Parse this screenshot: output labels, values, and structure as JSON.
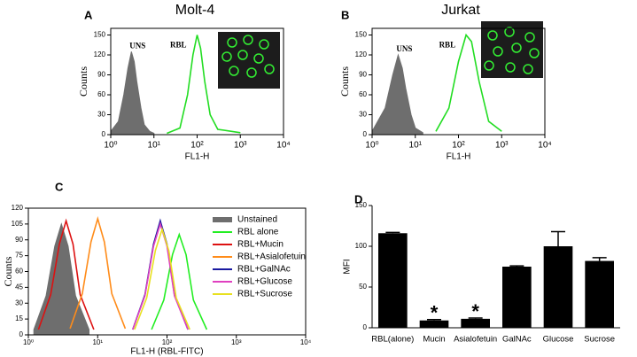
{
  "chart_data": [
    {
      "type": "line",
      "panel": "A",
      "title": "Molt-4",
      "x_label": "FL1-H",
      "y_label": "Counts",
      "xscale": "log",
      "xlim": [
        1,
        10000
      ],
      "xticks": [
        {
          "value": 1,
          "label": "10⁰"
        },
        {
          "value": 10,
          "label": "10¹"
        },
        {
          "value": 100,
          "label": "10²"
        },
        {
          "value": 1000,
          "label": "10³"
        },
        {
          "value": 10000,
          "label": "10⁴"
        }
      ],
      "ylim": [
        0,
        160
      ],
      "yticks": [
        0,
        30,
        60,
        90,
        120,
        150
      ],
      "series": [
        {
          "name": "UNS",
          "color": "#6e6e6e",
          "filled": true,
          "x": [
            1,
            1.5,
            2,
            2.5,
            3,
            3.5,
            4,
            5,
            6,
            8,
            10
          ],
          "values": [
            5,
            20,
            60,
            100,
            125,
            110,
            80,
            40,
            15,
            5,
            2
          ]
        },
        {
          "name": "RBL",
          "color": "#22dd22",
          "filled": false,
          "x": [
            20,
            40,
            60,
            80,
            100,
            120,
            150,
            200,
            300,
            1000
          ],
          "values": [
            2,
            10,
            60,
            120,
            150,
            130,
            80,
            30,
            8,
            3
          ]
        }
      ]
    },
    {
      "type": "line",
      "panel": "B",
      "title": "Jurkat",
      "x_label": "FL1-H",
      "y_label": "Counts",
      "xscale": "log",
      "xlim": [
        1,
        10000
      ],
      "xticks": [
        {
          "value": 1,
          "label": "10⁰"
        },
        {
          "value": 10,
          "label": "10¹"
        },
        {
          "value": 100,
          "label": "10²"
        },
        {
          "value": 1000,
          "label": "10³"
        },
        {
          "value": 10000,
          "label": "10⁴"
        }
      ],
      "ylim": [
        0,
        160
      ],
      "yticks": [
        0,
        30,
        60,
        90,
        120,
        150
      ],
      "series": [
        {
          "name": "UNS",
          "color": "#6e6e6e",
          "filled": true,
          "x": [
            1,
            2,
            3,
            4,
            5,
            6,
            8,
            10,
            15
          ],
          "values": [
            5,
            40,
            90,
            120,
            100,
            70,
            30,
            10,
            3
          ]
        },
        {
          "name": "RBL",
          "color": "#22dd22",
          "filled": false,
          "x": [
            30,
            60,
            100,
            150,
            200,
            300,
            500,
            1000
          ],
          "values": [
            5,
            40,
            110,
            150,
            140,
            80,
            20,
            5
          ]
        }
      ]
    },
    {
      "type": "line",
      "panel": "C",
      "x_label": "FL1-H (RBL-FITC)",
      "y_label": "Counts",
      "xscale": "log",
      "xlim": [
        1,
        10000
      ],
      "xticks": [
        {
          "value": 1,
          "label": "10⁰"
        },
        {
          "value": 10,
          "label": "10¹"
        },
        {
          "value": 100,
          "label": "10²"
        },
        {
          "value": 1000,
          "label": "10³"
        },
        {
          "value": 10000,
          "label": "10⁴"
        }
      ],
      "ylim": [
        0,
        120
      ],
      "yticks": [
        0,
        15,
        30,
        45,
        60,
        75,
        90,
        105,
        120
      ],
      "legend": "upper right",
      "series": [
        {
          "name": "Unstained",
          "color": "#6e6e6e",
          "filled": true,
          "x": [
            1.2,
            1.8,
            2.4,
            3,
            3.75,
            4.8,
            7.5
          ],
          "values": [
            5,
            37,
            84,
            105,
            84,
            37,
            5
          ]
        },
        {
          "name": "RBL alone",
          "color": "#22ee22",
          "filled": false,
          "x": [
            60,
            90,
            120,
            150,
            188,
            240,
            375
          ],
          "values": [
            5,
            33,
            76,
            95,
            76,
            33,
            5
          ]
        },
        {
          "name": "RBL+Mucin",
          "color": "#dd1111",
          "filled": false,
          "x": [
            1.4,
            2.1,
            2.8,
            3.5,
            4.4,
            5.6,
            8.8
          ],
          "values": [
            5,
            38,
            86,
            108,
            86,
            38,
            5
          ]
        },
        {
          "name": "RBL+Asialofetuin",
          "color": "#ff8c1a",
          "filled": false,
          "x": [
            4,
            6,
            8,
            10,
            12.5,
            16,
            25
          ],
          "values": [
            6,
            39,
            88,
            110,
            88,
            39,
            6
          ]
        },
        {
          "name": "RBL+GalNAc",
          "color": "#1a1aa0",
          "filled": false,
          "x": [
            32,
            48,
            64,
            80,
            100,
            128,
            200
          ],
          "values": [
            5,
            38,
            86,
            108,
            86,
            38,
            5
          ]
        },
        {
          "name": "RBL+Glucose",
          "color": "#e040c0",
          "filled": false,
          "x": [
            32,
            48,
            64,
            80,
            100,
            128,
            200
          ],
          "values": [
            5,
            37,
            84,
            105,
            84,
            37,
            5
          ]
        },
        {
          "name": "RBL+Sucrose",
          "color": "#e8e020",
          "filled": false,
          "x": [
            34,
            51,
            68,
            85,
            106,
            136,
            213
          ],
          "values": [
            5,
            35,
            80,
            100,
            80,
            35,
            5
          ]
        }
      ]
    },
    {
      "type": "bar",
      "panel": "D",
      "y_label": "MFI",
      "color": "#000000",
      "categories": [
        "RBL(alone)",
        "Mucin",
        "Asialofetuin",
        "GalNAc",
        "Glucose",
        "Sucrose"
      ],
      "values": [
        116,
        9,
        11,
        75,
        100,
        82
      ],
      "errors": [
        1,
        1,
        1,
        1,
        18,
        4
      ],
      "markers": [
        null,
        "*",
        "*",
        null,
        null,
        null
      ],
      "ylim": [
        0,
        150
      ],
      "yticks": [
        0,
        50,
        100,
        150
      ]
    }
  ]
}
